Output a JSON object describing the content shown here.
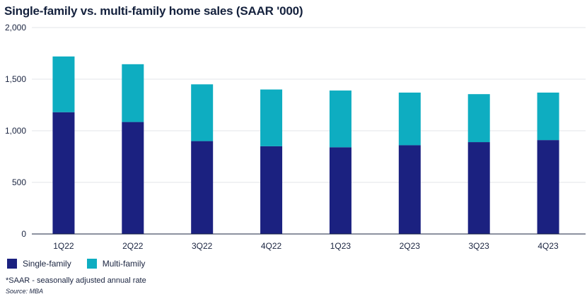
{
  "chart_data": {
    "type": "bar",
    "stacked": true,
    "title": "Single-family vs. multi-family home sales (SAAR '000)",
    "categories": [
      "1Q22",
      "2Q22",
      "3Q22",
      "4Q22",
      "1Q23",
      "2Q23",
      "3Q23",
      "4Q23"
    ],
    "series": [
      {
        "name": "Single-family",
        "color": "#1b2180",
        "values": [
          1180,
          1085,
          900,
          850,
          840,
          860,
          890,
          910
        ]
      },
      {
        "name": "Multi-family",
        "color": "#0eadc1",
        "values": [
          540,
          560,
          550,
          550,
          550,
          510,
          465,
          460
        ]
      }
    ],
    "ylim": [
      0,
      2000
    ],
    "yticks": [
      0,
      500,
      1000,
      1500,
      2000
    ],
    "ytick_labels": [
      "0",
      "500",
      "1,000",
      "1,500",
      "2,000"
    ],
    "grid": true,
    "legend_position": "bottom-left"
  },
  "footnote": "*SAAR - seasonally adjusted annual rate",
  "source": "Source: MBA"
}
